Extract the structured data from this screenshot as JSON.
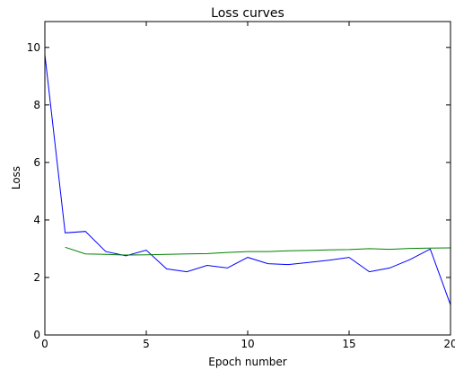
{
  "chart_data": {
    "type": "line",
    "title": "Loss curves",
    "xlabel": "Epoch number",
    "ylabel": "Loss",
    "xlim": [
      0,
      20
    ],
    "ylim": [
      0,
      10.9
    ],
    "xticks": [
      "0",
      "5",
      "10",
      "15",
      "20"
    ],
    "yticks": [
      "0",
      "2",
      "4",
      "6",
      "8",
      "10"
    ],
    "grid": false,
    "legend": "none",
    "series": [
      {
        "color": "#0000ff",
        "x": [
          0,
          1,
          2,
          3,
          4,
          5,
          6,
          7,
          8,
          9,
          10,
          11,
          12,
          13,
          14,
          15,
          16,
          17,
          18,
          19,
          20
        ],
        "y": [
          9.75,
          3.55,
          3.6,
          2.9,
          2.75,
          2.95,
          2.3,
          2.2,
          2.42,
          2.33,
          2.7,
          2.48,
          2.45,
          2.52,
          2.6,
          2.7,
          2.2,
          2.33,
          2.62,
          2.99,
          1.05
        ]
      },
      {
        "color": "#008000",
        "x": [
          1,
          2,
          3,
          4,
          5,
          6,
          7,
          8,
          9,
          10,
          11,
          12,
          13,
          14,
          15,
          16,
          17,
          18,
          19,
          20
        ],
        "y": [
          3.05,
          2.82,
          2.8,
          2.78,
          2.79,
          2.8,
          2.82,
          2.83,
          2.87,
          2.9,
          2.9,
          2.93,
          2.94,
          2.96,
          2.97,
          3.0,
          2.98,
          3.01,
          3.02,
          3.03
        ]
      }
    ]
  }
}
